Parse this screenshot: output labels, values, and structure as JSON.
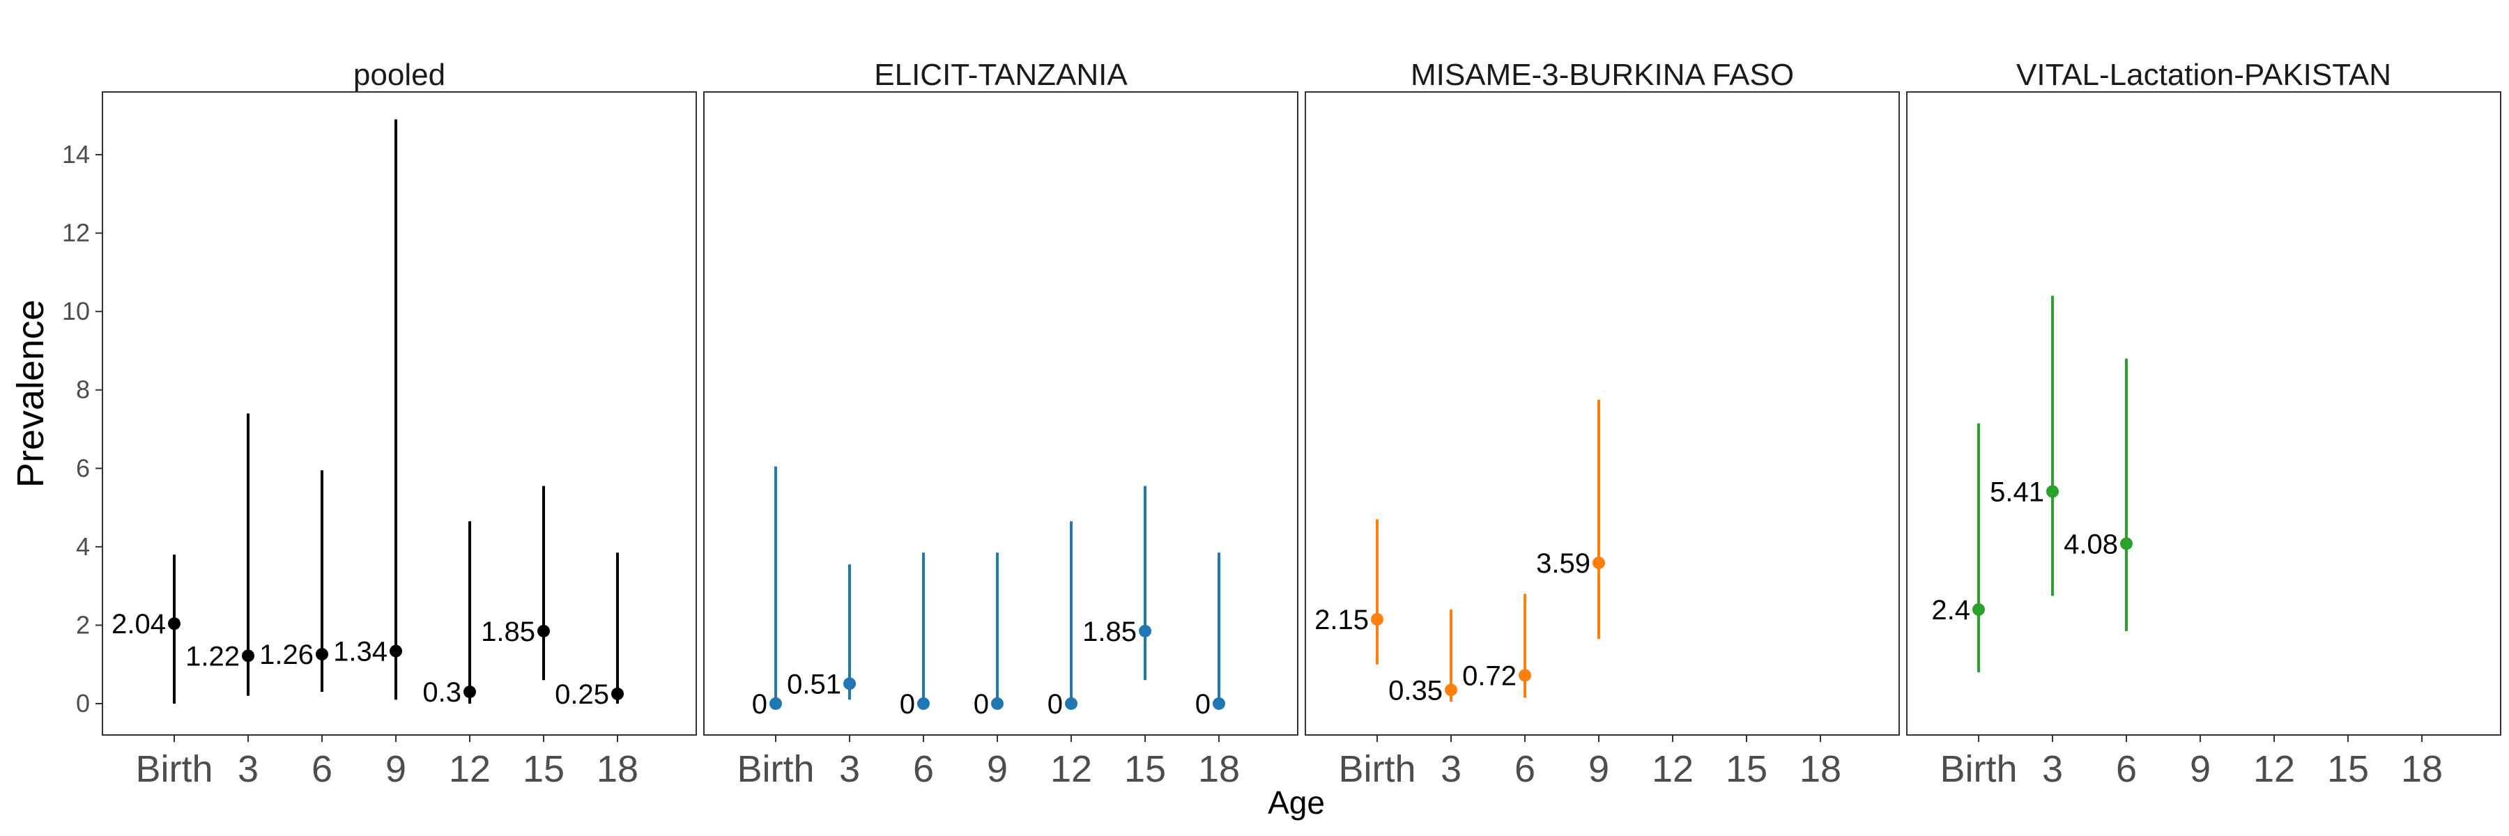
{
  "chart_data": {
    "type": "scatter",
    "xlabel": "Age",
    "ylabel": "Prevalence",
    "x_categories": [
      "Birth",
      "3",
      "6",
      "9",
      "12",
      "15",
      "18"
    ],
    "ylim": [
      -0.8,
      15.6
    ],
    "y_ticks": [
      0,
      2,
      4,
      6,
      8,
      10,
      12,
      14
    ],
    "grid": true,
    "facets": [
      {
        "title": "pooled",
        "color": "#000000",
        "points": [
          {
            "x": "Birth",
            "y": 2.04,
            "lower": 0.0,
            "upper": 3.8,
            "label": "2.04"
          },
          {
            "x": "3",
            "y": 1.22,
            "lower": 0.2,
            "upper": 7.4,
            "label": "1.22"
          },
          {
            "x": "6",
            "y": 1.26,
            "lower": 0.3,
            "upper": 5.95,
            "label": "1.26"
          },
          {
            "x": "9",
            "y": 1.34,
            "lower": 0.1,
            "upper": 14.9,
            "label": "1.34"
          },
          {
            "x": "12",
            "y": 0.3,
            "lower": 0.0,
            "upper": 4.65,
            "label": "0.3"
          },
          {
            "x": "15",
            "y": 1.85,
            "lower": 0.6,
            "upper": 5.55,
            "label": "1.85"
          },
          {
            "x": "18",
            "y": 0.25,
            "lower": 0.0,
            "upper": 3.85,
            "label": "0.25"
          }
        ]
      },
      {
        "title": "ELICIT-TANZANIA",
        "color": "#1f77b4",
        "points": [
          {
            "x": "Birth",
            "y": 0,
            "lower": 0.0,
            "upper": 6.05,
            "label": "0"
          },
          {
            "x": "3",
            "y": 0.51,
            "lower": 0.1,
            "upper": 3.55,
            "label": "0.51"
          },
          {
            "x": "6",
            "y": 0,
            "lower": 0.0,
            "upper": 3.85,
            "label": "0"
          },
          {
            "x": "9",
            "y": 0,
            "lower": 0.0,
            "upper": 3.85,
            "label": "0"
          },
          {
            "x": "12",
            "y": 0,
            "lower": 0.0,
            "upper": 4.65,
            "label": "0"
          },
          {
            "x": "15",
            "y": 1.85,
            "lower": 0.6,
            "upper": 5.55,
            "label": "1.85"
          },
          {
            "x": "18",
            "y": 0,
            "lower": 0.0,
            "upper": 3.85,
            "label": "0"
          }
        ]
      },
      {
        "title": "MISAME-3-BURKINA FASO",
        "color": "#ff7f0e",
        "points": [
          {
            "x": "Birth",
            "y": 2.15,
            "lower": 1.0,
            "upper": 4.7,
            "label": "2.15"
          },
          {
            "x": "3",
            "y": 0.35,
            "lower": 0.05,
            "upper": 2.4,
            "label": "0.35"
          },
          {
            "x": "6",
            "y": 0.72,
            "lower": 0.15,
            "upper": 2.8,
            "label": "0.72"
          },
          {
            "x": "9",
            "y": 3.59,
            "lower": 1.65,
            "upper": 7.75,
            "label": "3.59"
          }
        ]
      },
      {
        "title": "VITAL-Lactation-PAKISTAN",
        "color": "#2ca02c",
        "points": [
          {
            "x": "Birth",
            "y": 2.4,
            "lower": 0.8,
            "upper": 7.15,
            "label": "2.4"
          },
          {
            "x": "3",
            "y": 5.41,
            "lower": 2.75,
            "upper": 10.4,
            "label": "5.41"
          },
          {
            "x": "6",
            "y": 4.08,
            "lower": 1.85,
            "upper": 8.8,
            "label": "4.08"
          }
        ]
      }
    ]
  }
}
